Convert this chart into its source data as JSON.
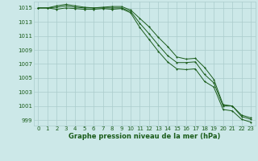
{
  "title": "Graphe pression niveau de la mer (hPa)",
  "bg_color": "#cce8e8",
  "grid_color": "#aacccc",
  "line_color": "#1a5c1a",
  "x_values": [
    0,
    1,
    2,
    3,
    4,
    5,
    6,
    7,
    8,
    9,
    10,
    11,
    12,
    13,
    14,
    15,
    16,
    17,
    18,
    19,
    20,
    21,
    22,
    23
  ],
  "x_labels": [
    "0",
    "1",
    "2",
    "3",
    "4",
    "5",
    "6",
    "7",
    "8",
    "9",
    "10",
    "11",
    "12",
    "13",
    "14",
    "15",
    "16",
    "17",
    "18",
    "19",
    "20",
    "21",
    "22",
    "23"
  ],
  "y_ticks": [
    999,
    1001,
    1003,
    1005,
    1007,
    1009,
    1011,
    1013,
    1015
  ],
  "ylim": [
    998.2,
    1015.9
  ],
  "xlim": [
    -0.5,
    23.5
  ],
  "line_top": [
    1015.0,
    1015.0,
    1015.3,
    1015.5,
    1015.3,
    1015.1,
    1015.0,
    1015.1,
    1015.2,
    1015.2,
    1014.7,
    1013.5,
    1012.3,
    1010.8,
    1009.5,
    1008.0,
    1007.7,
    1007.8,
    1006.5,
    1004.8,
    1001.2,
    1001.0,
    999.7,
    999.3
  ],
  "line_mid": [
    1015.0,
    1015.0,
    1015.1,
    1015.3,
    1015.1,
    1015.0,
    1015.0,
    1015.0,
    1015.0,
    1015.0,
    1014.5,
    1012.8,
    1011.3,
    1009.7,
    1008.2,
    1007.2,
    1007.2,
    1007.3,
    1005.5,
    1004.3,
    1001.0,
    1001.0,
    999.5,
    999.1
  ],
  "line_bot": [
    1015.0,
    1015.0,
    1014.8,
    1015.0,
    1014.9,
    1014.8,
    1014.8,
    1014.9,
    1014.8,
    1014.9,
    1014.3,
    1012.2,
    1010.5,
    1008.8,
    1007.3,
    1006.3,
    1006.2,
    1006.3,
    1004.5,
    1003.7,
    1000.5,
    1000.3,
    999.1,
    998.7
  ]
}
